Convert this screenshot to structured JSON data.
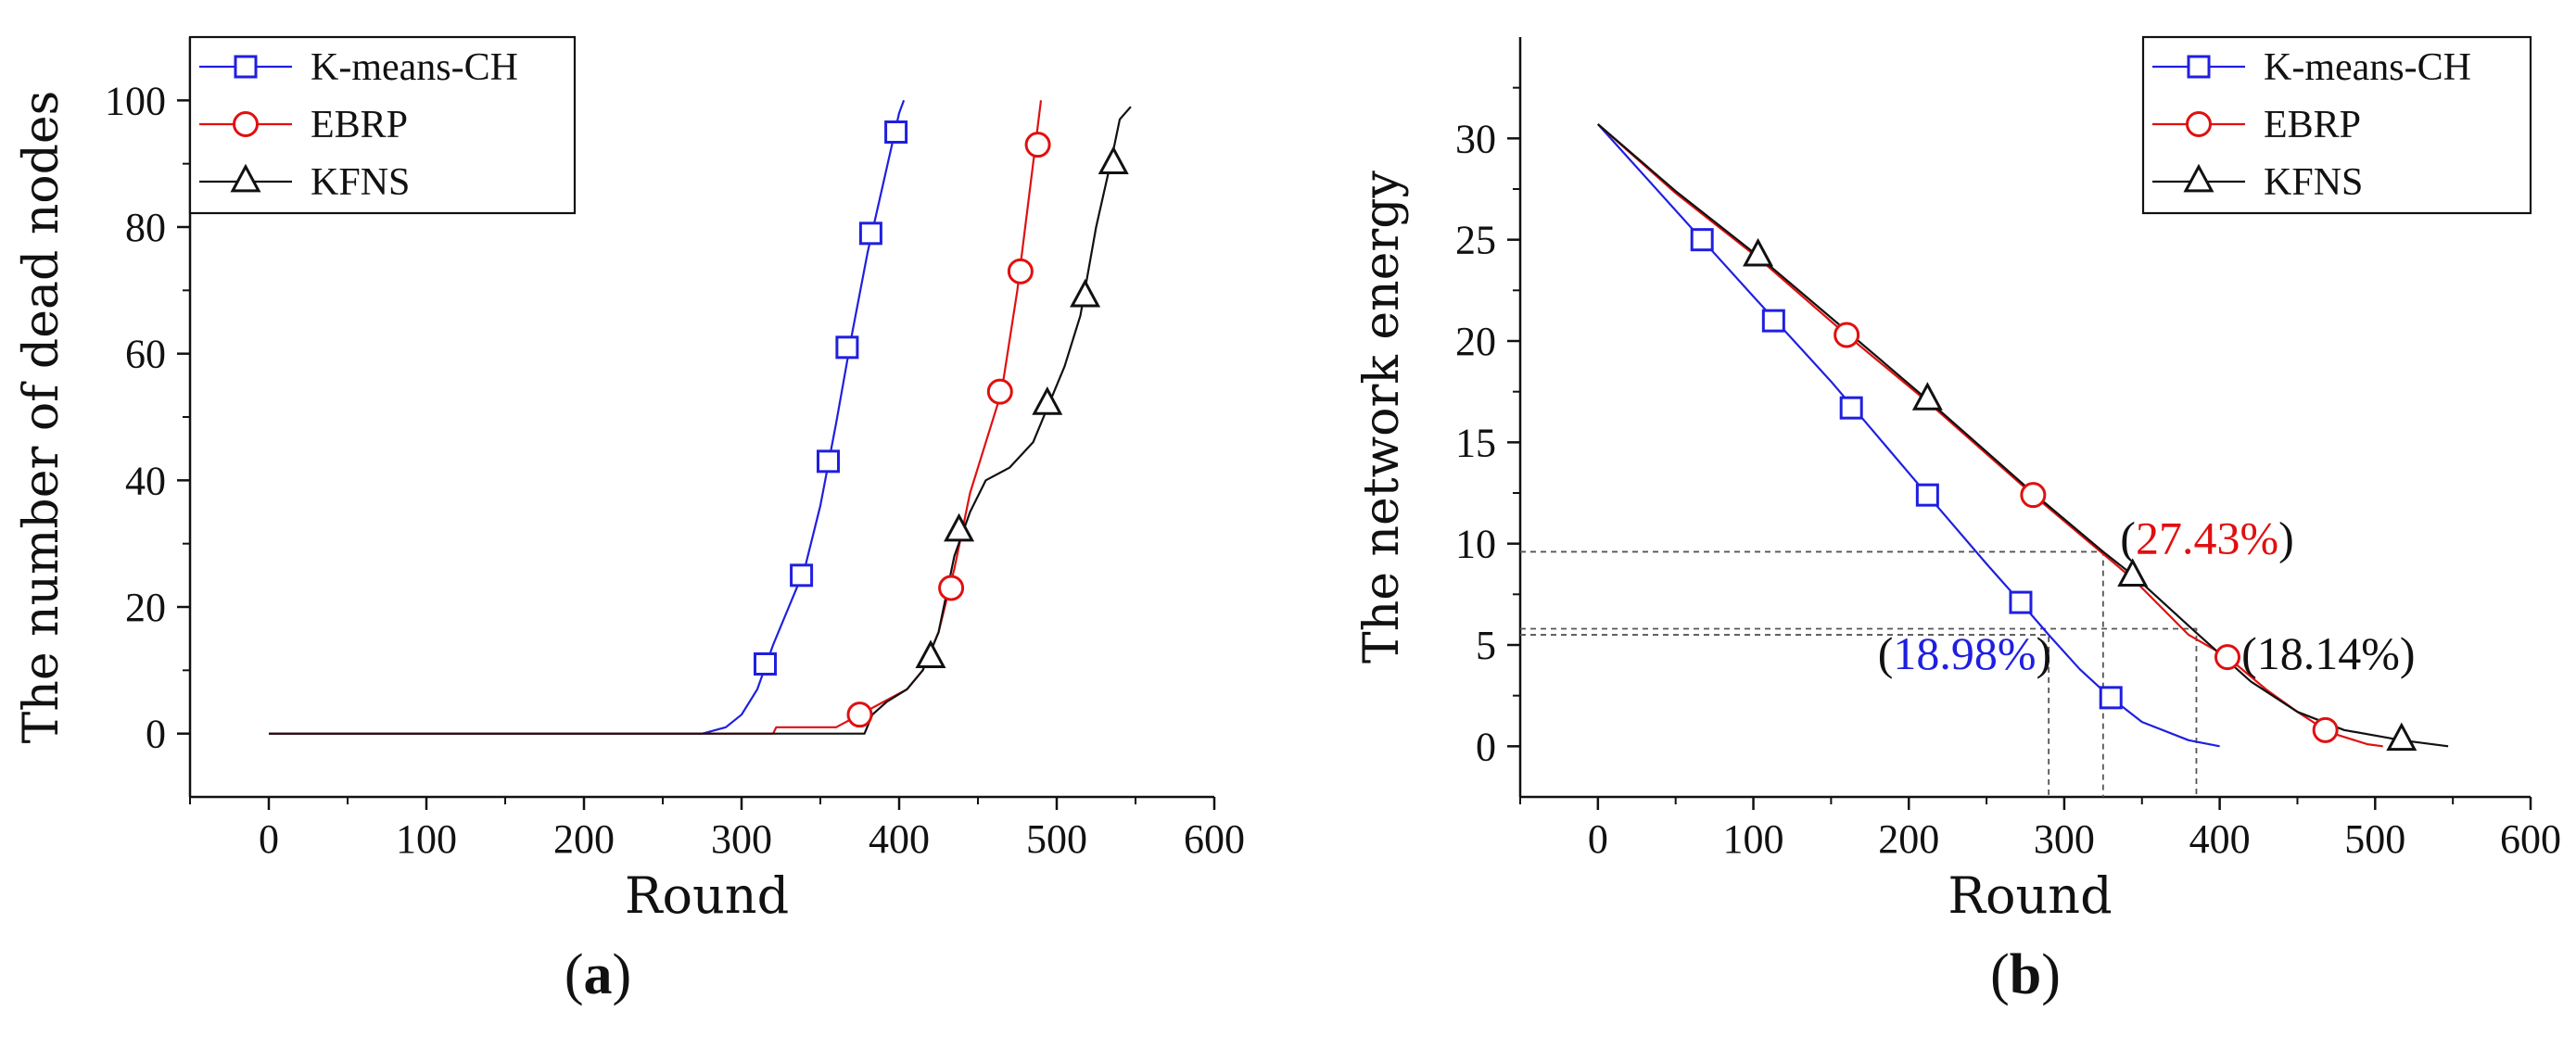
{
  "chart_data": [
    {
      "type": "line",
      "panel_label": "a",
      "xlabel": "Round",
      "ylabel": "The number of dead nodes",
      "xlim": [
        -50,
        600
      ],
      "ylim": [
        -10,
        110
      ],
      "xticks": [
        0,
        100,
        200,
        300,
        400,
        500,
        600
      ],
      "yticks": [
        0,
        20,
        40,
        60,
        80,
        100
      ],
      "legend_position": "top-left",
      "series": [
        {
          "name": "K-means-CH",
          "color": "#1f1fe0",
          "marker": "square",
          "line": [
            [
              0,
              0
            ],
            [
              275,
              0
            ],
            [
              290,
              1
            ],
            [
              300,
              3
            ],
            [
              310,
              7
            ],
            [
              320,
              14
            ],
            [
              330,
              20
            ],
            [
              340,
              26
            ],
            [
              350,
              36
            ],
            [
              360,
              49
            ],
            [
              370,
              63
            ],
            [
              380,
              76
            ],
            [
              390,
              87
            ],
            [
              400,
              98
            ],
            [
              403,
              100
            ]
          ],
          "markers": [
            [
              315,
              11
            ],
            [
              338,
              25
            ],
            [
              355,
              43
            ],
            [
              367,
              61
            ],
            [
              382,
              79
            ],
            [
              398,
              95
            ]
          ]
        },
        {
          "name": "EBRP",
          "color": "#e01010",
          "marker": "circle",
          "line": [
            [
              0,
              0
            ],
            [
              320,
              0
            ],
            [
              322,
              1
            ],
            [
              360,
              1
            ],
            [
              375,
              3
            ],
            [
              390,
              5
            ],
            [
              405,
              7
            ],
            [
              415,
              10
            ],
            [
              425,
              16
            ],
            [
              435,
              26
            ],
            [
              445,
              38
            ],
            [
              455,
              46
            ],
            [
              465,
              54
            ],
            [
              475,
              70
            ],
            [
              485,
              90
            ],
            [
              490,
              100
            ]
          ],
          "markers": [
            [
              375,
              3
            ],
            [
              433,
              23
            ],
            [
              464,
              54
            ],
            [
              477,
              73
            ],
            [
              488,
              93
            ]
          ]
        },
        {
          "name": "KFNS",
          "color": "#111111",
          "marker": "triangle",
          "line": [
            [
              0,
              0
            ],
            [
              330,
              0
            ],
            [
              378,
              0
            ],
            [
              383,
              3
            ],
            [
              392,
              5
            ],
            [
              405,
              7
            ],
            [
              415,
              10
            ],
            [
              425,
              16
            ],
            [
              435,
              28
            ],
            [
              445,
              35
            ],
            [
              455,
              40
            ],
            [
              470,
              42
            ],
            [
              485,
              46
            ],
            [
              495,
              52
            ],
            [
              505,
              58
            ],
            [
              515,
              66
            ],
            [
              525,
              80
            ],
            [
              535,
              91
            ],
            [
              540,
              97
            ],
            [
              547,
              99
            ]
          ],
          "markers": [
            [
              420,
              12
            ],
            [
              438,
              32
            ],
            [
              494,
              52
            ],
            [
              518,
              69
            ],
            [
              536,
              90
            ]
          ]
        }
      ]
    },
    {
      "type": "line",
      "panel_label": "b",
      "xlabel": "Round",
      "ylabel": "The network energy",
      "xlim": [
        -50,
        600
      ],
      "ylim": [
        -2.5,
        35
      ],
      "xticks": [
        0,
        100,
        200,
        300,
        400,
        500,
        600
      ],
      "yticks": [
        0,
        5,
        10,
        15,
        20,
        25,
        30
      ],
      "legend_position": "top-right",
      "series": [
        {
          "name": "K-means-CH",
          "color": "#1f1fe0",
          "marker": "square",
          "line": [
            [
              0,
              30.7
            ],
            [
              67,
              25.0
            ],
            [
              100,
              22.2
            ],
            [
              150,
              18.0
            ],
            [
              212,
              12.4
            ],
            [
              250,
              9.0
            ],
            [
              272,
              7.1
            ],
            [
              290,
              5.5
            ],
            [
              310,
              3.8
            ],
            [
              330,
              2.4
            ],
            [
              350,
              1.2
            ],
            [
              380,
              0.3
            ],
            [
              400,
              0
            ]
          ],
          "markers": [
            [
              67,
              25.0
            ],
            [
              113,
              21.0
            ],
            [
              163,
              16.7
            ],
            [
              212,
              12.4
            ],
            [
              272,
              7.1
            ],
            [
              330,
              2.4
            ]
          ]
        },
        {
          "name": "EBRP",
          "color": "#e01010",
          "marker": "circle",
          "line": [
            [
              0,
              30.7
            ],
            [
              50,
              27.3
            ],
            [
              103,
              24.1
            ],
            [
              160,
              20.3
            ],
            [
              212,
              17.0
            ],
            [
              280,
              12.4
            ],
            [
              325,
              9.5
            ],
            [
              345,
              8.2
            ],
            [
              380,
              5.5
            ],
            [
              405,
              4.4
            ],
            [
              430,
              2.8
            ],
            [
              450,
              1.7
            ],
            [
              470,
              0.7
            ],
            [
              495,
              0.1
            ],
            [
              505,
              0
            ]
          ],
          "markers": [
            [
              160,
              20.3
            ],
            [
              280,
              12.4
            ],
            [
              405,
              4.4
            ],
            [
              468,
              0.8
            ]
          ]
        },
        {
          "name": "KFNS",
          "color": "#111111",
          "marker": "triangle",
          "line": [
            [
              0,
              30.7
            ],
            [
              50,
              27.4
            ],
            [
              103,
              24.2
            ],
            [
              160,
              20.5
            ],
            [
              212,
              17.1
            ],
            [
              280,
              12.5
            ],
            [
              325,
              9.6
            ],
            [
              345,
              8.4
            ],
            [
              385,
              5.6
            ],
            [
              420,
              3.2
            ],
            [
              450,
              1.7
            ],
            [
              480,
              0.8
            ],
            [
              517,
              0.3
            ],
            [
              547,
              0
            ]
          ],
          "markers": [
            [
              103,
              24.2
            ],
            [
              212,
              17.1
            ],
            [
              344,
              8.4
            ],
            [
              517,
              0.3
            ]
          ]
        }
      ],
      "reference_lines": [
        {
          "x": 290,
          "y": 5.5
        },
        {
          "x": 325,
          "y": 9.6
        },
        {
          "x": 385,
          "y": 5.8
        }
      ],
      "annotations": [
        {
          "text": "18.98%",
          "color": "#1f1fe0",
          "x": 180,
          "y": 3.8
        },
        {
          "text": "27.43%",
          "color": "#e01010",
          "x": 336,
          "y": 9.5
        },
        {
          "text": "18.14%",
          "color": "#111111",
          "x": 414,
          "y": 3.8
        }
      ]
    }
  ]
}
